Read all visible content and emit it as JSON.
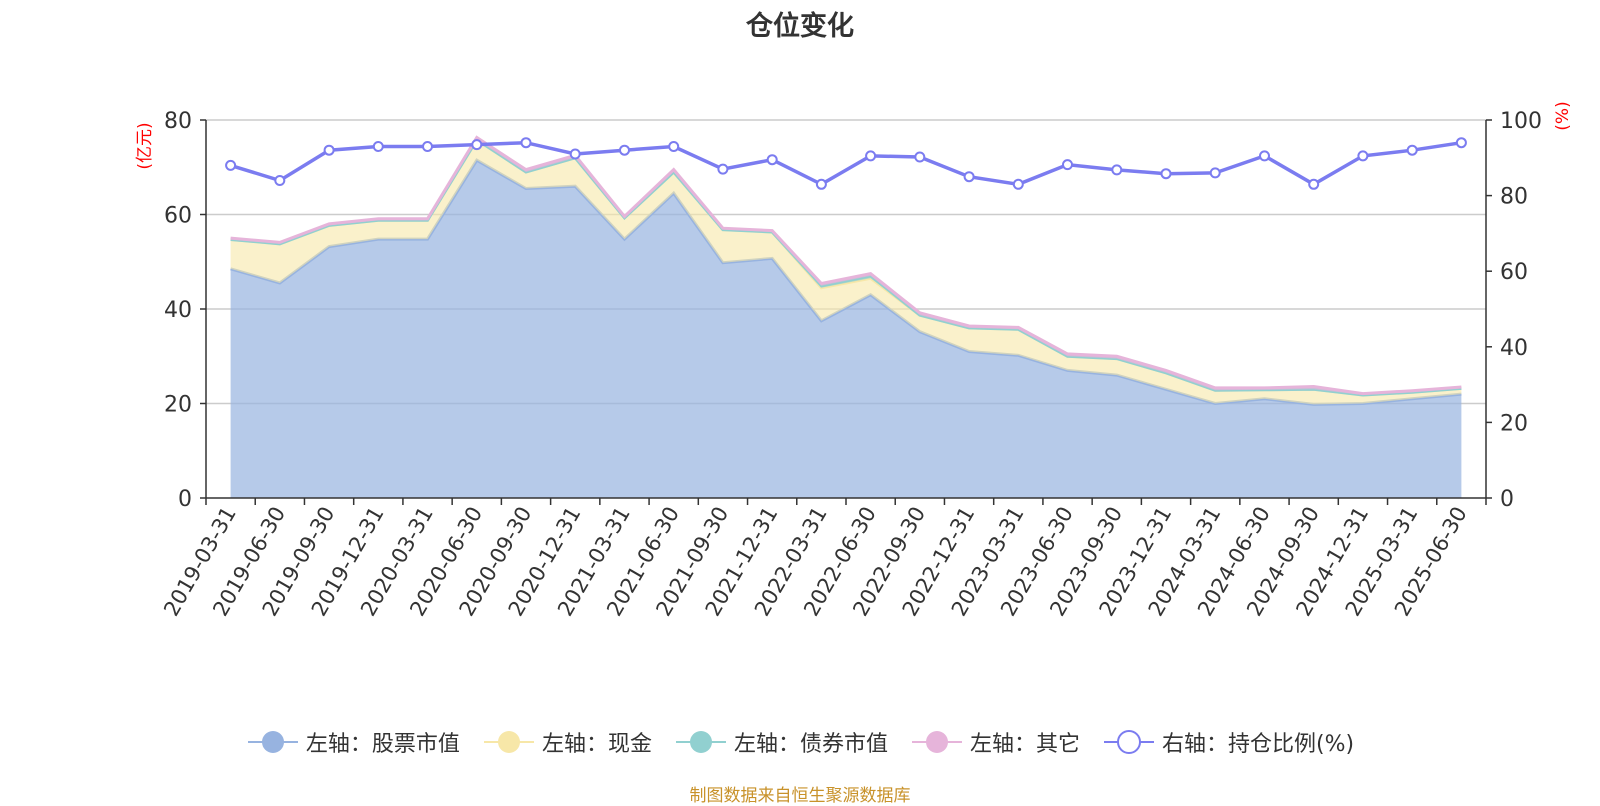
{
  "chart_data": {
    "type": "area",
    "title": "仓位变化",
    "categories": [
      "2019-03-31",
      "2019-06-30",
      "2019-09-30",
      "2019-12-31",
      "2020-03-31",
      "2020-06-30",
      "2020-09-30",
      "2020-12-31",
      "2021-03-31",
      "2021-06-30",
      "2021-09-30",
      "2021-12-31",
      "2022-03-31",
      "2022-06-30",
      "2022-09-30",
      "2022-12-31",
      "2023-03-31",
      "2023-06-30",
      "2023-09-30",
      "2023-12-31",
      "2024-03-31",
      "2024-06-30",
      "2024-09-30",
      "2024-12-31",
      "2025-03-31",
      "2025-06-30"
    ],
    "left_axis": {
      "label": "(亿元)",
      "ylim": [
        0,
        80
      ],
      "ticks": [
        0,
        20,
        40,
        60,
        80
      ]
    },
    "right_axis": {
      "label": "(%)",
      "ylim": [
        0,
        100
      ],
      "ticks": [
        0,
        20,
        40,
        60,
        80,
        100
      ]
    },
    "grid": true,
    "legend_position": "bottom",
    "series": [
      {
        "name": "左轴：股票市值",
        "axis": "left",
        "stacked": true,
        "color": "#97b3e0",
        "values": [
          48.5,
          45.5,
          53.2,
          54.8,
          54.8,
          71.5,
          65.5,
          66.0,
          54.8,
          64.5,
          49.8,
          50.7,
          37.5,
          43.0,
          35.2,
          31.0,
          30.2,
          27.0,
          26.0,
          23.0,
          20.0,
          21.0,
          19.8,
          20.0,
          21.0,
          22.0
        ]
      },
      {
        "name": "左轴：现金",
        "axis": "left",
        "stacked": true,
        "color": "#f7e7a8",
        "values": [
          6.2,
          8.3,
          4.5,
          4.0,
          4.0,
          4.3,
          3.5,
          6.0,
          4.5,
          4.5,
          7.0,
          5.6,
          7.0,
          3.5,
          3.5,
          5.0,
          5.5,
          3.0,
          3.5,
          3.5,
          2.8,
          1.9,
          3.2,
          1.8,
          1.4,
          1.2
        ]
      },
      {
        "name": "左轴：债券市值",
        "axis": "left",
        "stacked": true,
        "color": "#91d0d0",
        "values": [
          0,
          0,
          0,
          0,
          0,
          0,
          0,
          0,
          0,
          0,
          0,
          0,
          0.4,
          0.5,
          0,
          0,
          0,
          0,
          0,
          0,
          0,
          0,
          0,
          0,
          0,
          0
        ]
      },
      {
        "name": "左轴：其它",
        "axis": "left",
        "stacked": true,
        "color": "#e6b4da",
        "values": [
          0.3,
          0.3,
          0.3,
          0.3,
          0.3,
          0.5,
          0.5,
          0.5,
          0.3,
          0.5,
          0.3,
          0.3,
          0.5,
          0.5,
          0.5,
          0.4,
          0.4,
          0.5,
          0.5,
          0.5,
          0.5,
          0.4,
          0.6,
          0.3,
          0.3,
          0.3
        ]
      },
      {
        "name": "右轴：持仓比例(%)",
        "axis": "right",
        "type": "line",
        "color": "#7b7cf0",
        "values": [
          88.0,
          84.0,
          92.0,
          93.0,
          93.0,
          93.5,
          94.0,
          91.0,
          92.0,
          93.0,
          87.0,
          89.5,
          83.0,
          90.5,
          90.2,
          85.0,
          83.0,
          88.2,
          86.8,
          85.8,
          86.0,
          90.5,
          83.0,
          90.5,
          92.0,
          94.0
        ]
      }
    ]
  },
  "source_note": "制图数据来自恒生聚源数据库"
}
